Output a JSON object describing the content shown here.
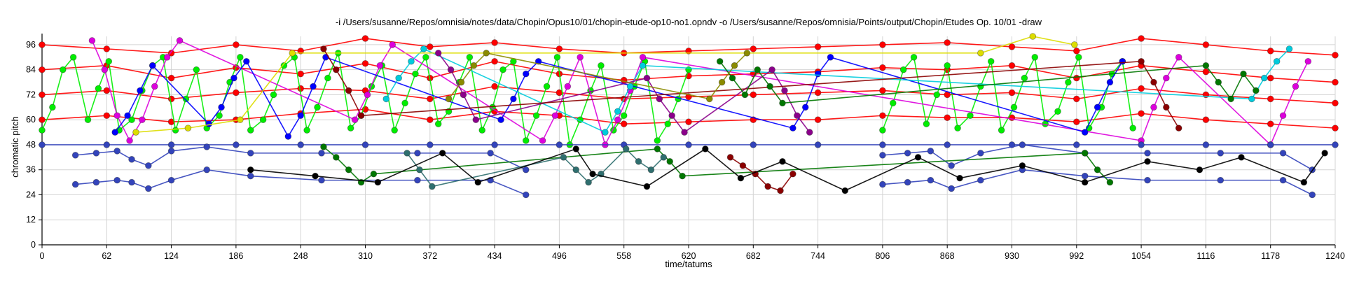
{
  "chart_data": {
    "type": "scatter",
    "title": "-i /Users/susanne/Repos/omnisia/notes/data/Chopin/Opus10/01/chopin-etude-op10-no1.opndv -o /Users/susanne/Repos/omnisia/Points/output/Chopin/Etudes Op. 10/01 -draw",
    "xlabel": "time/tatums",
    "ylabel": "chromatic pitch",
    "xlim": [
      0,
      1240
    ],
    "ylim": [
      0,
      100
    ],
    "xticks": [
      0,
      62,
      124,
      186,
      248,
      310,
      372,
      434,
      496,
      558,
      620,
      682,
      744,
      806,
      868,
      930,
      992,
      1054,
      1116,
      1178,
      1240
    ],
    "yticks": [
      0,
      12,
      24,
      36,
      48,
      60,
      72,
      84,
      96
    ],
    "grid": true,
    "colors": {
      "red": "#ff0000",
      "green": "#00ee00",
      "magenta": "#dd00dd",
      "blue": "#0000ff",
      "navy": "#3344bb",
      "cyan": "#00ccdd",
      "yellow": "#dddd00",
      "purple": "#8b008b",
      "darkred": "#8b0000",
      "darkgreen": "#007700",
      "olive": "#8b8b00",
      "teal": "#2f6f6f",
      "black": "#000000",
      "gray": "#999999"
    },
    "series": [
      {
        "color": "red",
        "x": [
          0,
          62,
          124,
          186,
          248,
          310,
          372,
          434,
          496,
          558,
          620,
          682,
          744,
          806,
          868,
          930,
          992,
          1054,
          1116,
          1178,
          1240
        ],
        "y": [
          96,
          94,
          92,
          96,
          93,
          99,
          95,
          97,
          94,
          92,
          93,
          94,
          95,
          96,
          97,
          95,
          93,
          99,
          96,
          93,
          91
        ]
      },
      {
        "color": "red",
        "x": [
          0,
          62,
          124,
          186,
          248,
          310,
          372,
          434,
          496,
          558,
          620,
          682,
          744,
          806,
          868,
          930,
          992,
          1054,
          1116,
          1178,
          1240
        ],
        "y": [
          84,
          86,
          80,
          85,
          82,
          87,
          80,
          88,
          82,
          79,
          81,
          82,
          83,
          85,
          84,
          86,
          80,
          86,
          83,
          80,
          78
        ]
      },
      {
        "color": "red",
        "x": [
          0,
          62,
          124,
          186,
          248,
          310,
          372,
          434,
          496,
          558,
          620,
          682,
          744,
          806,
          868,
          930,
          992,
          1054,
          1116,
          1178,
          1240
        ],
        "y": [
          72,
          74,
          70,
          73,
          75,
          74,
          70,
          76,
          73,
          70,
          71,
          72,
          73,
          74,
          72,
          73,
          70,
          75,
          72,
          70,
          68
        ]
      },
      {
        "color": "red",
        "x": [
          0,
          62,
          124,
          186,
          248,
          310,
          372,
          434,
          496,
          558,
          620,
          682,
          744,
          806,
          868,
          930,
          992,
          1054,
          1116,
          1178,
          1240
        ],
        "y": [
          60,
          62,
          59,
          60,
          63,
          65,
          60,
          64,
          62,
          58,
          59,
          60,
          60,
          62,
          61,
          61,
          59,
          63,
          60,
          58,
          56
        ]
      },
      {
        "color": "green",
        "x": [
          0,
          10,
          20,
          30,
          44,
          54,
          64,
          74,
          86,
          96,
          106,
          116,
          128,
          138,
          148,
          158,
          170,
          180,
          190,
          200,
          212,
          222,
          232,
          242,
          254,
          264,
          274,
          284,
          296,
          306,
          316,
          326,
          338,
          348,
          358,
          368,
          380,
          390,
          400,
          410,
          422,
          432,
          442,
          452,
          464,
          474,
          484,
          494,
          506,
          516,
          526,
          536,
          548,
          558,
          568,
          578,
          590,
          600,
          610,
          620
        ],
        "y": [
          55,
          66,
          84,
          90,
          60,
          75,
          88,
          55,
          60,
          74,
          86,
          90,
          55,
          70,
          84,
          56,
          62,
          78,
          90,
          55,
          60,
          72,
          86,
          90,
          55,
          66,
          80,
          92,
          56,
          62,
          76,
          86,
          55,
          68,
          82,
          90,
          58,
          64,
          78,
          90,
          55,
          66,
          84,
          88,
          50,
          62,
          76,
          90,
          48,
          60,
          74,
          86,
          55,
          62,
          76,
          88,
          50,
          58,
          70,
          84
        ]
      },
      {
        "color": "green",
        "x": [
          806,
          816,
          826,
          836,
          848,
          858,
          868,
          878,
          890,
          900,
          910,
          920,
          932,
          942,
          952,
          962,
          974,
          984,
          994,
          1004,
          1016,
          1026,
          1036,
          1046
        ],
        "y": [
          55,
          68,
          84,
          90,
          58,
          72,
          86,
          56,
          62,
          76,
          88,
          55,
          66,
          80,
          90,
          58,
          64,
          78,
          90,
          56,
          66,
          82,
          88,
          56
        ]
      },
      {
        "color": "magenta",
        "x": [
          48,
          60,
          72,
          84,
          96,
          108,
          120,
          132,
          300,
          312,
          324,
          336,
          480,
          492,
          504,
          516,
          540,
          552,
          564,
          576,
          1054,
          1066,
          1078,
          1090,
          1178,
          1190,
          1202,
          1214
        ],
        "y": [
          98,
          84,
          62,
          50,
          60,
          76,
          90,
          98,
          60,
          72,
          86,
          96,
          50,
          62,
          76,
          90,
          48,
          60,
          74,
          90,
          50,
          66,
          80,
          90,
          48,
          62,
          76,
          88
        ]
      },
      {
        "color": "blue",
        "x": [
          70,
          82,
          94,
          106,
          160,
          172,
          184,
          196,
          236,
          248,
          260,
          272,
          440,
          452,
          464,
          476,
          720,
          732,
          744,
          756,
          1000,
          1012,
          1024,
          1036
        ],
        "y": [
          54,
          62,
          74,
          86,
          58,
          66,
          80,
          88,
          52,
          62,
          76,
          90,
          60,
          70,
          82,
          88,
          56,
          66,
          82,
          90,
          54,
          66,
          78,
          88
        ]
      },
      {
        "color": "cyan",
        "x": [
          330,
          342,
          354,
          366,
          540,
          552,
          564,
          576,
          1160,
          1172,
          1184,
          1196
        ],
        "y": [
          70,
          80,
          88,
          94,
          54,
          64,
          76,
          86,
          70,
          80,
          88,
          94
        ]
      },
      {
        "color": "yellow",
        "x": [
          90,
          140,
          190,
          240,
          900,
          950,
          990
        ],
        "y": [
          54,
          56,
          60,
          92,
          92,
          100,
          96
        ]
      },
      {
        "color": "purple",
        "x": [
          380,
          392,
          404,
          416,
          580,
          592,
          604,
          616,
          700,
          712,
          724,
          736
        ],
        "y": [
          92,
          84,
          72,
          60,
          80,
          70,
          62,
          54,
          84,
          74,
          62,
          54
        ]
      },
      {
        "color": "darkred",
        "x": [
          270,
          282,
          294,
          306,
          1054,
          1066,
          1078,
          1090
        ],
        "y": [
          94,
          84,
          74,
          62,
          88,
          78,
          66,
          56
        ]
      },
      {
        "color": "darkgreen",
        "x": [
          650,
          662,
          674,
          686,
          698,
          710,
          1116,
          1128,
          1140,
          1152,
          1164
        ],
        "y": [
          88,
          80,
          72,
          84,
          76,
          68,
          86,
          78,
          70,
          82,
          74
        ]
      },
      {
        "color": "olive",
        "x": [
          390,
          402,
          414,
          426,
          640,
          652,
          664,
          676
        ],
        "y": [
          70,
          78,
          86,
          92,
          70,
          78,
          86,
          92
        ]
      },
      {
        "color": "navy",
        "x": [
          0,
          62,
          124,
          186,
          248,
          310,
          372,
          434,
          496,
          558,
          620,
          682,
          744,
          806,
          868,
          930,
          992,
          1054,
          1116,
          1178,
          1240
        ],
        "y": [
          48,
          48,
          48,
          48,
          48,
          48,
          48,
          48,
          48,
          48,
          48,
          48,
          48,
          48,
          48,
          48,
          48,
          48,
          48,
          48,
          48
        ]
      },
      {
        "color": "navy",
        "x": [
          32,
          52,
          72,
          86,
          102,
          124,
          158,
          200,
          268,
          360,
          430,
          464
        ],
        "y": [
          43,
          44,
          45,
          41,
          38,
          45,
          47,
          44,
          44,
          44,
          44,
          36
        ]
      },
      {
        "color": "navy",
        "x": [
          32,
          52,
          72,
          86,
          102,
          124,
          158,
          200,
          268,
          360,
          430,
          464
        ],
        "y": [
          29,
          30,
          31,
          30,
          27,
          31,
          36,
          33,
          31,
          31,
          31,
          24
        ]
      },
      {
        "color": "navy",
        "x": [
          806,
          830,
          852,
          872,
          900,
          940,
          1000,
          1060,
          1130,
          1190,
          1218
        ],
        "y": [
          43,
          44,
          45,
          38,
          44,
          48,
          44,
          44,
          44,
          44,
          36
        ]
      },
      {
        "color": "navy",
        "x": [
          806,
          830,
          852,
          872,
          900,
          940,
          1000,
          1060,
          1130,
          1190,
          1218
        ],
        "y": [
          29,
          30,
          31,
          27,
          31,
          36,
          33,
          31,
          31,
          31,
          24
        ]
      },
      {
        "color": "darkgreen",
        "x": [
          270,
          282,
          294,
          306,
          318,
          590,
          602,
          614,
          1000,
          1012,
          1024
        ],
        "y": [
          47,
          42,
          36,
          30,
          34,
          46,
          40,
          33,
          44,
          36,
          30
        ]
      },
      {
        "color": "teal",
        "x": [
          350,
          362,
          374,
          500,
          512,
          524,
          536,
          560,
          572,
          584,
          596
        ],
        "y": [
          44,
          36,
          28,
          42,
          36,
          30,
          34,
          46,
          40,
          36,
          42
        ]
      },
      {
        "color": "darkred",
        "x": [
          660,
          672,
          684,
          696,
          708,
          720
        ],
        "y": [
          42,
          38,
          34,
          28,
          26,
          34
        ]
      },
      {
        "color": "black",
        "x": [
          200,
          262,
          322,
          384,
          418,
          512,
          528,
          580,
          636,
          670,
          710,
          770,
          840,
          880,
          940,
          1000,
          1060,
          1110,
          1150,
          1210,
          1230
        ],
        "y": [
          36,
          33,
          30,
          44,
          30,
          46,
          34,
          28,
          46,
          32,
          40,
          26,
          42,
          32,
          38,
          30,
          40,
          36,
          42,
          30,
          44
        ]
      }
    ]
  }
}
